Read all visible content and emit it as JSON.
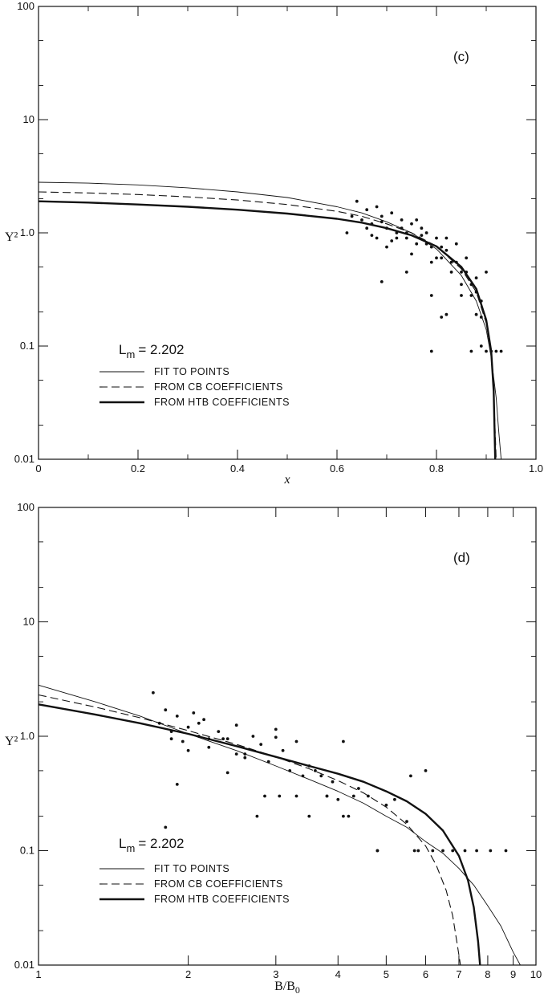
{
  "chart_data": [
    {
      "type": "scatter",
      "panel_tag": "(c)",
      "xlabel": "x",
      "ylabel": "Y²",
      "x_scale": "linear",
      "y_scale": "log",
      "xlim": [
        0,
        1.0
      ],
      "ylim": [
        0.01,
        100
      ],
      "x_ticks": [
        0,
        0.2,
        0.4,
        0.6,
        0.8,
        1.0
      ],
      "x_tick_labels": [
        "0",
        "0.2",
        "0.4",
        "0.6",
        "0.8",
        "1.0"
      ],
      "y_ticks": [
        0.01,
        0.1,
        1.0,
        10,
        100
      ],
      "y_tick_labels": [
        "0.01",
        "0.1",
        "1.0",
        "10",
        "100"
      ],
      "annotation": "L",
      "annotation_sub": "m",
      "annotation_value": "= 2.202",
      "legend": [
        {
          "label": "FIT TO POINTS",
          "style": "thin"
        },
        {
          "label": "FROM CB COEFFICIENTS",
          "style": "dashed"
        },
        {
          "label": "FROM HTB COEFFICIENTS",
          "style": "thick"
        }
      ],
      "series": [
        {
          "style": "thin",
          "x": [
            0,
            0.1,
            0.2,
            0.3,
            0.4,
            0.5,
            0.6,
            0.65,
            0.7,
            0.75,
            0.8,
            0.85,
            0.88,
            0.9,
            0.91,
            0.92,
            0.925,
            0.93
          ],
          "y": [
            2.8,
            2.75,
            2.65,
            2.5,
            2.3,
            2.05,
            1.7,
            1.5,
            1.25,
            1.0,
            0.72,
            0.42,
            0.25,
            0.14,
            0.08,
            0.035,
            0.018,
            0.01
          ]
        },
        {
          "style": "dashed",
          "x": [
            0,
            0.1,
            0.2,
            0.3,
            0.4,
            0.5,
            0.6,
            0.65,
            0.7,
            0.75,
            0.8,
            0.85,
            0.88,
            0.9,
            0.91,
            0.915,
            0.92
          ],
          "y": [
            2.3,
            2.25,
            2.18,
            2.08,
            1.95,
            1.78,
            1.55,
            1.4,
            1.2,
            1.0,
            0.76,
            0.48,
            0.3,
            0.16,
            0.09,
            0.04,
            0.01
          ]
        },
        {
          "style": "thick",
          "x": [
            0,
            0.1,
            0.2,
            0.3,
            0.4,
            0.5,
            0.6,
            0.65,
            0.7,
            0.75,
            0.8,
            0.85,
            0.88,
            0.9,
            0.91,
            0.915,
            0.918
          ],
          "y": [
            1.9,
            1.85,
            1.78,
            1.7,
            1.6,
            1.48,
            1.33,
            1.23,
            1.1,
            0.95,
            0.76,
            0.5,
            0.32,
            0.17,
            0.09,
            0.04,
            0.01
          ]
        }
      ],
      "points": {
        "x": [
          0.62,
          0.65,
          0.66,
          0.67,
          0.68,
          0.69,
          0.7,
          0.71,
          0.72,
          0.73,
          0.74,
          0.75,
          0.76,
          0.77,
          0.78,
          0.79,
          0.8,
          0.81,
          0.82,
          0.83,
          0.84,
          0.85,
          0.86,
          0.87,
          0.88,
          0.89,
          0.9,
          0.63,
          0.64,
          0.66,
          0.68,
          0.7,
          0.72,
          0.74,
          0.76,
          0.78,
          0.8,
          0.82,
          0.84,
          0.86,
          0.88,
          0.67,
          0.69,
          0.71,
          0.73,
          0.75,
          0.77,
          0.79,
          0.81,
          0.83,
          0.85,
          0.87,
          0.89,
          0.69,
          0.74,
          0.79,
          0.82,
          0.85,
          0.88,
          0.9,
          0.91,
          0.92,
          0.93,
          0.79,
          0.89,
          0.81,
          0.87
        ],
        "y": [
          1.0,
          1.3,
          1.6,
          1.2,
          1.7,
          1.4,
          1.1,
          1.5,
          1.0,
          1.3,
          0.9,
          1.2,
          0.8,
          1.1,
          1.0,
          0.75,
          0.9,
          0.6,
          0.7,
          0.55,
          0.8,
          0.45,
          0.6,
          0.35,
          0.4,
          0.25,
          0.45,
          1.4,
          1.9,
          1.1,
          0.9,
          0.75,
          0.9,
          1.0,
          1.3,
          0.8,
          0.6,
          0.9,
          0.55,
          0.45,
          0.3,
          0.95,
          1.25,
          0.85,
          1.1,
          0.65,
          0.95,
          0.55,
          0.75,
          0.45,
          0.35,
          0.28,
          0.18,
          0.37,
          0.45,
          0.28,
          0.19,
          0.28,
          0.19,
          0.09,
          0.09,
          0.09,
          0.09,
          0.09,
          0.1,
          0.18,
          0.09
        ]
      }
    },
    {
      "type": "scatter",
      "panel_tag": "(d)",
      "xlabel": "B/B",
      "xlabel_sub": "0",
      "ylabel": "Y²",
      "x_scale": "log",
      "y_scale": "log",
      "xlim": [
        1,
        10
      ],
      "ylim": [
        0.01,
        100
      ],
      "x_ticks": [
        1,
        2,
        3,
        4,
        5,
        6,
        7,
        8,
        9,
        10
      ],
      "x_tick_labels": [
        "1",
        "2",
        "3",
        "4",
        "5",
        "6",
        "7",
        "8",
        "9",
        "10"
      ],
      "y_ticks": [
        0.01,
        0.1,
        1.0,
        10,
        100
      ],
      "y_tick_labels": [
        "0.01",
        "0.1",
        "1.0",
        "10",
        "100"
      ],
      "annotation": "L",
      "annotation_sub": "m",
      "annotation_value": "= 2.202",
      "legend": [
        {
          "label": "FIT TO POINTS",
          "style": "thin"
        },
        {
          "label": "FROM CB COEFFICIENTS",
          "style": "dashed"
        },
        {
          "label": "FROM HTB COEFFICIENTS",
          "style": "thick"
        }
      ],
      "series": [
        {
          "style": "thin",
          "x": [
            1,
            1.3,
            1.6,
            2,
            2.5,
            3,
            3.5,
            4,
            4.5,
            5,
            5.5,
            6,
            6.5,
            7,
            7.5,
            8,
            8.5,
            9,
            9.3
          ],
          "y": [
            2.8,
            2.0,
            1.5,
            1.05,
            0.75,
            0.55,
            0.42,
            0.33,
            0.26,
            0.2,
            0.16,
            0.12,
            0.095,
            0.07,
            0.05,
            0.033,
            0.022,
            0.013,
            0.01
          ]
        },
        {
          "style": "dashed",
          "x": [
            1,
            1.3,
            1.6,
            2,
            2.5,
            3,
            3.5,
            4,
            4.5,
            5,
            5.5,
            6,
            6.3,
            6.6,
            6.8,
            6.95,
            7.05
          ],
          "y": [
            2.3,
            1.8,
            1.45,
            1.12,
            0.85,
            0.66,
            0.52,
            0.41,
            0.32,
            0.24,
            0.17,
            0.11,
            0.075,
            0.045,
            0.027,
            0.015,
            0.01
          ]
        },
        {
          "style": "thick",
          "x": [
            1,
            1.3,
            1.6,
            2,
            2.5,
            3,
            3.5,
            4,
            4.5,
            5,
            5.5,
            6,
            6.5,
            7,
            7.3,
            7.5,
            7.65,
            7.72
          ],
          "y": [
            1.9,
            1.55,
            1.3,
            1.05,
            0.82,
            0.66,
            0.55,
            0.47,
            0.4,
            0.33,
            0.27,
            0.21,
            0.15,
            0.09,
            0.055,
            0.032,
            0.016,
            0.01
          ]
        }
      ],
      "points": {
        "x": [
          1.75,
          1.8,
          1.85,
          1.9,
          1.95,
          2.0,
          2.05,
          2.1,
          2.15,
          2.2,
          2.3,
          2.4,
          2.5,
          2.6,
          2.7,
          2.8,
          2.9,
          3.0,
          3.1,
          3.2,
          3.3,
          3.4,
          3.5,
          3.6,
          3.7,
          3.8,
          3.9,
          4.0,
          4.1,
          4.2,
          4.4,
          4.6,
          4.8,
          5.0,
          5.2,
          5.5,
          5.7,
          6.0,
          6.2,
          6.5,
          6.8,
          7.2,
          7.6,
          8.1,
          8.7,
          1.7,
          1.9,
          2.0,
          2.2,
          2.4,
          2.6,
          2.75,
          2.85,
          3.0,
          3.05,
          3.3,
          3.5,
          3.8,
          4.1,
          4.3,
          4.8,
          5.6,
          5.8,
          1.8,
          1.85,
          2.1,
          2.35,
          2.5
        ],
        "y": [
          1.3,
          1.7,
          1.1,
          1.5,
          0.9,
          1.2,
          1.6,
          1.0,
          1.4,
          0.8,
          1.1,
          0.95,
          1.25,
          0.7,
          1.0,
          0.85,
          0.6,
          1.15,
          0.75,
          0.5,
          0.9,
          0.45,
          0.55,
          0.5,
          0.45,
          0.3,
          0.4,
          0.28,
          0.9,
          0.2,
          0.35,
          0.3,
          0.1,
          0.25,
          0.28,
          0.18,
          0.1,
          0.5,
          0.1,
          0.1,
          0.1,
          0.1,
          0.1,
          0.1,
          0.1,
          2.4,
          0.38,
          0.75,
          0.95,
          0.48,
          0.65,
          0.2,
          0.3,
          0.98,
          0.3,
          0.3,
          0.2,
          0.3,
          0.2,
          0.3,
          0.1,
          0.45,
          0.1,
          0.16,
          0.95,
          1.3,
          0.95,
          0.7
        ]
      }
    }
  ]
}
